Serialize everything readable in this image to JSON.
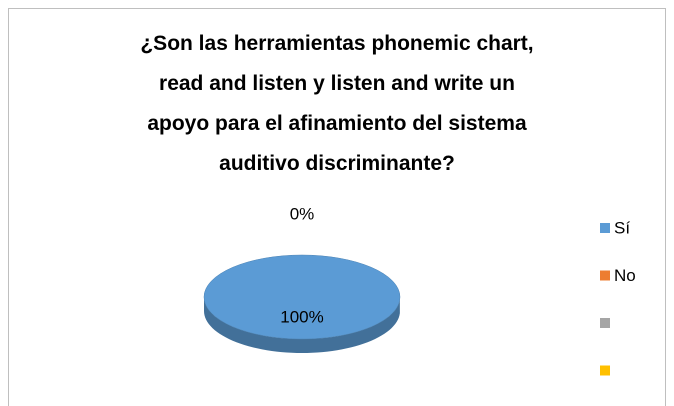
{
  "chart_data": {
    "type": "pie3d",
    "title": "¿Son las herramientas phonemic chart,\nread and listen y listen and write un\napoyo para el afinamiento del sistema\nauditivo discriminante?",
    "categories": [
      "Sí",
      "No",
      null,
      null
    ],
    "values": [
      100,
      0,
      null,
      null
    ],
    "value_labels": [
      "100%",
      "0%",
      null,
      null
    ],
    "colors": [
      "#5b9bd5",
      "#ed7d31",
      "#a5a5a5",
      "#ffc000"
    ],
    "legend": "right"
  }
}
